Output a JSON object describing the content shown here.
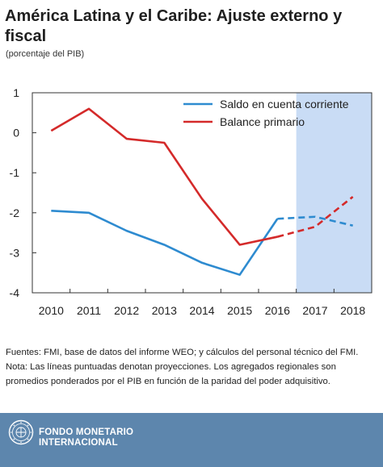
{
  "header": {
    "title": "América Latina y el Caribe: Ajuste externo y fiscal",
    "subtitle": "(porcentaje del PIB)"
  },
  "chart_data": {
    "type": "line",
    "title": "América Latina y el Caribe: Ajuste externo y fiscal",
    "ylabel": "(porcentaje del PIB)",
    "x": [
      "2010",
      "2011",
      "2012",
      "2013",
      "2014",
      "2015",
      "2016",
      "2017",
      "2018"
    ],
    "ylim": [
      -4,
      1
    ],
    "yticks": [
      1,
      0,
      -1,
      -2,
      -3,
      -4
    ],
    "projection_start": "2016",
    "projection_shading": "2017-2018",
    "legend_position": "top-right",
    "grid": false,
    "series": [
      {
        "name": "Saldo en cuenta corriente",
        "color": "#2e8bd0",
        "values": [
          -1.95,
          -2.0,
          -2.45,
          -2.8,
          -3.25,
          -3.55,
          -2.15,
          -2.1,
          -2.32
        ]
      },
      {
        "name": "Balance primario",
        "color": "#d42a2a",
        "values": [
          0.05,
          0.6,
          -0.15,
          -0.25,
          -1.65,
          -2.8,
          -2.6,
          -2.35,
          -1.6
        ]
      }
    ]
  },
  "notes": {
    "sources": "Fuentes: FMI, base de datos del informe WEO; y cálculos del personal técnico del FMI.",
    "note_line1": "Nota: Las líneas puntuadas denotan proyecciones. Los agregados regionales son",
    "note_line2": "promedios ponderados por el PIB en función de la paridad del poder adquisitivo."
  },
  "footer": {
    "org_line1": "FONDO MONETARIO",
    "org_line2": "INTERNACIONAL",
    "logo_icon": "imf-seal-icon",
    "background": "#5d86ad"
  },
  "colors": {
    "projection_shade": "#c9dcf5",
    "axis": "#333333"
  }
}
